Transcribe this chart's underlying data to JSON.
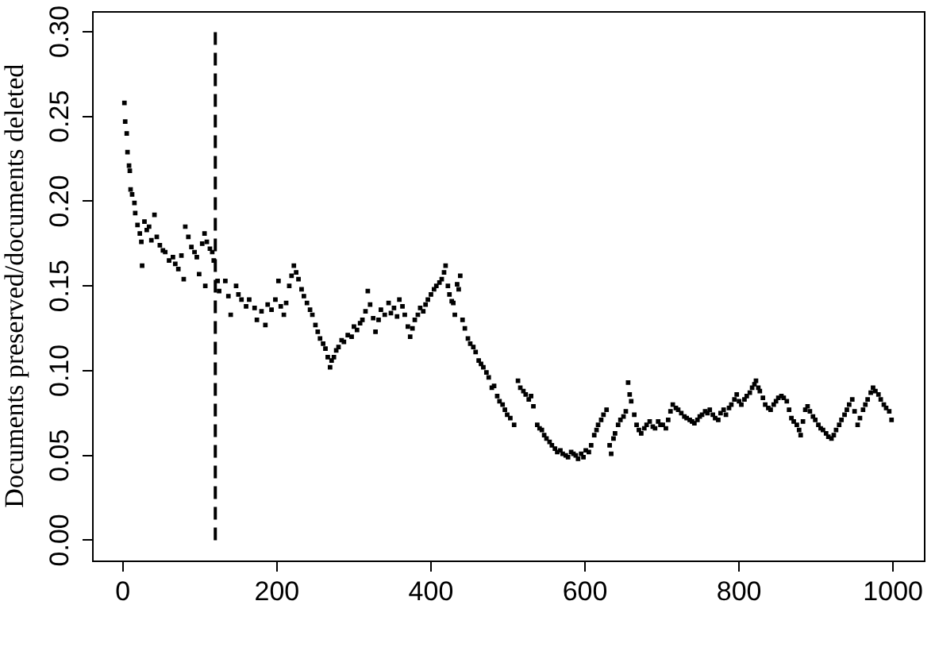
{
  "chart_data": {
    "type": "scatter",
    "ylabel": "Documents preserved/documents deleted",
    "color": "#000000",
    "marker": "square",
    "xlim": [
      -40,
      1040
    ],
    "ylim": [
      -0.012,
      0.312
    ],
    "xticks": [
      0,
      200,
      400,
      600,
      800,
      1000
    ],
    "yticks": [
      {
        "value": 0,
        "label": "0.00"
      },
      0.05,
      {
        "value": 0.1,
        "label": "0.10"
      },
      0.15,
      {
        "value": 0.2,
        "label": "0.20"
      },
      0.25,
      {
        "value": 0.3,
        "label": "0.30"
      }
    ],
    "ref_lines": [
      {
        "axis": "x",
        "value": 120,
        "color": "#000000",
        "line_style": "dashed"
      }
    ],
    "x": [
      2,
      3,
      5,
      6,
      8,
      9,
      10,
      12,
      15,
      16,
      19,
      22,
      24,
      25,
      28,
      31,
      34,
      37,
      41,
      44,
      48,
      52,
      55,
      60,
      65,
      68,
      72,
      76,
      79,
      81,
      85,
      89,
      93,
      96,
      99,
      103,
      106,
      107,
      109,
      113,
      116,
      118,
      123,
      125,
      133,
      137,
      140,
      147,
      150,
      154,
      160,
      164,
      171,
      174,
      180,
      185,
      188,
      193,
      198,
      202,
      205,
      209,
      212,
      216,
      219,
      222,
      225,
      228,
      232,
      235,
      239,
      243,
      246,
      250,
      253,
      256,
      260,
      263,
      266,
      269,
      271,
      274,
      277,
      280,
      284,
      287,
      292,
      297,
      300,
      304,
      308,
      311,
      315,
      318,
      321,
      325,
      328,
      332,
      335,
      340,
      345,
      348,
      352,
      356,
      359,
      363,
      366,
      370,
      373,
      376,
      379,
      383,
      386,
      390,
      393,
      396,
      400,
      404,
      407,
      411,
      414,
      417,
      419,
      422,
      424,
      427,
      429,
      431,
      434,
      436,
      438,
      441,
      444,
      448,
      451,
      455,
      458,
      462,
      465,
      468,
      472,
      475,
      479,
      482,
      486,
      489,
      493,
      496,
      499,
      503,
      508,
      513,
      516,
      520,
      523,
      527,
      530,
      533,
      538,
      541,
      544,
      547,
      550,
      554,
      557,
      561,
      564,
      568,
      571,
      575,
      578,
      582,
      585,
      588,
      591,
      595,
      598,
      601,
      605,
      608,
      612,
      615,
      617,
      621,
      624,
      628,
      632,
      634,
      637,
      639,
      643,
      646,
      650,
      653,
      656,
      658,
      660,
      664,
      667,
      670,
      673,
      677,
      680,
      684,
      688,
      691,
      695,
      698,
      701,
      705,
      708,
      711,
      714,
      718,
      721,
      725,
      729,
      732,
      736,
      739,
      742,
      746,
      749,
      752,
      756,
      759,
      762,
      766,
      769,
      773,
      776,
      780,
      783,
      787,
      790,
      794,
      797,
      800,
      803,
      807,
      810,
      814,
      817,
      820,
      822,
      825,
      827,
      831,
      834,
      838,
      841,
      845,
      848,
      851,
      855,
      858,
      862,
      865,
      868,
      871,
      875,
      878,
      880,
      883,
      886,
      889,
      892,
      896,
      899,
      903,
      906,
      909,
      913,
      916,
      920,
      923,
      926,
      930,
      933,
      937,
      940,
      943,
      947,
      950,
      954,
      957,
      961,
      964,
      967,
      971,
      974,
      977,
      981,
      984,
      988,
      991,
      995,
      998
    ],
    "values": [
      0.258,
      0.247,
      0.24,
      0.229,
      0.221,
      0.218,
      0.207,
      0.204,
      0.199,
      0.193,
      0.186,
      0.181,
      0.176,
      0.162,
      0.188,
      0.183,
      0.185,
      0.177,
      0.192,
      0.179,
      0.174,
      0.171,
      0.17,
      0.165,
      0.167,
      0.163,
      0.16,
      0.168,
      0.154,
      0.185,
      0.179,
      0.173,
      0.17,
      0.167,
      0.157,
      0.175,
      0.181,
      0.15,
      0.176,
      0.172,
      0.17,
      0.165,
      0.153,
      0.147,
      0.153,
      0.144,
      0.133,
      0.15,
      0.145,
      0.142,
      0.138,
      0.142,
      0.137,
      0.13,
      0.135,
      0.127,
      0.139,
      0.136,
      0.142,
      0.153,
      0.138,
      0.133,
      0.14,
      0.15,
      0.156,
      0.162,
      0.158,
      0.154,
      0.148,
      0.144,
      0.14,
      0.136,
      0.133,
      0.127,
      0.123,
      0.119,
      0.116,
      0.113,
      0.108,
      0.102,
      0.106,
      0.108,
      0.112,
      0.114,
      0.118,
      0.117,
      0.121,
      0.12,
      0.126,
      0.124,
      0.128,
      0.13,
      0.135,
      0.147,
      0.139,
      0.131,
      0.123,
      0.13,
      0.136,
      0.133,
      0.14,
      0.134,
      0.137,
      0.132,
      0.142,
      0.138,
      0.133,
      0.126,
      0.12,
      0.125,
      0.13,
      0.133,
      0.137,
      0.135,
      0.139,
      0.142,
      0.145,
      0.148,
      0.15,
      0.152,
      0.154,
      0.158,
      0.162,
      0.15,
      0.145,
      0.141,
      0.14,
      0.133,
      0.151,
      0.148,
      0.156,
      0.13,
      0.125,
      0.119,
      0.116,
      0.114,
      0.111,
      0.106,
      0.104,
      0.102,
      0.099,
      0.096,
      0.09,
      0.091,
      0.085,
      0.082,
      0.08,
      0.077,
      0.074,
      0.072,
      0.068,
      0.094,
      0.09,
      0.088,
      0.086,
      0.083,
      0.085,
      0.079,
      0.068,
      0.066,
      0.065,
      0.062,
      0.06,
      0.058,
      0.056,
      0.054,
      0.052,
      0.053,
      0.051,
      0.05,
      0.049,
      0.052,
      0.051,
      0.05,
      0.048,
      0.051,
      0.049,
      0.053,
      0.052,
      0.056,
      0.062,
      0.065,
      0.068,
      0.071,
      0.074,
      0.077,
      0.056,
      0.051,
      0.06,
      0.063,
      0.068,
      0.071,
      0.073,
      0.076,
      0.093,
      0.086,
      0.082,
      0.074,
      0.068,
      0.065,
      0.063,
      0.066,
      0.068,
      0.07,
      0.067,
      0.066,
      0.07,
      0.068,
      0.068,
      0.066,
      0.071,
      0.076,
      0.08,
      0.078,
      0.077,
      0.075,
      0.073,
      0.072,
      0.071,
      0.07,
      0.069,
      0.071,
      0.073,
      0.074,
      0.076,
      0.075,
      0.077,
      0.074,
      0.072,
      0.071,
      0.075,
      0.077,
      0.074,
      0.078,
      0.08,
      0.083,
      0.086,
      0.082,
      0.08,
      0.083,
      0.085,
      0.087,
      0.09,
      0.092,
      0.094,
      0.09,
      0.088,
      0.084,
      0.08,
      0.078,
      0.077,
      0.08,
      0.082,
      0.084,
      0.085,
      0.084,
      0.082,
      0.077,
      0.072,
      0.07,
      0.068,
      0.065,
      0.062,
      0.07,
      0.077,
      0.079,
      0.076,
      0.073,
      0.071,
      0.068,
      0.066,
      0.065,
      0.063,
      0.061,
      0.06,
      0.062,
      0.065,
      0.068,
      0.071,
      0.074,
      0.077,
      0.08,
      0.083,
      0.076,
      0.068,
      0.072,
      0.077,
      0.08,
      0.083,
      0.087,
      0.09,
      0.088,
      0.086,
      0.083,
      0.08,
      0.078,
      0.076,
      0.071
    ]
  }
}
